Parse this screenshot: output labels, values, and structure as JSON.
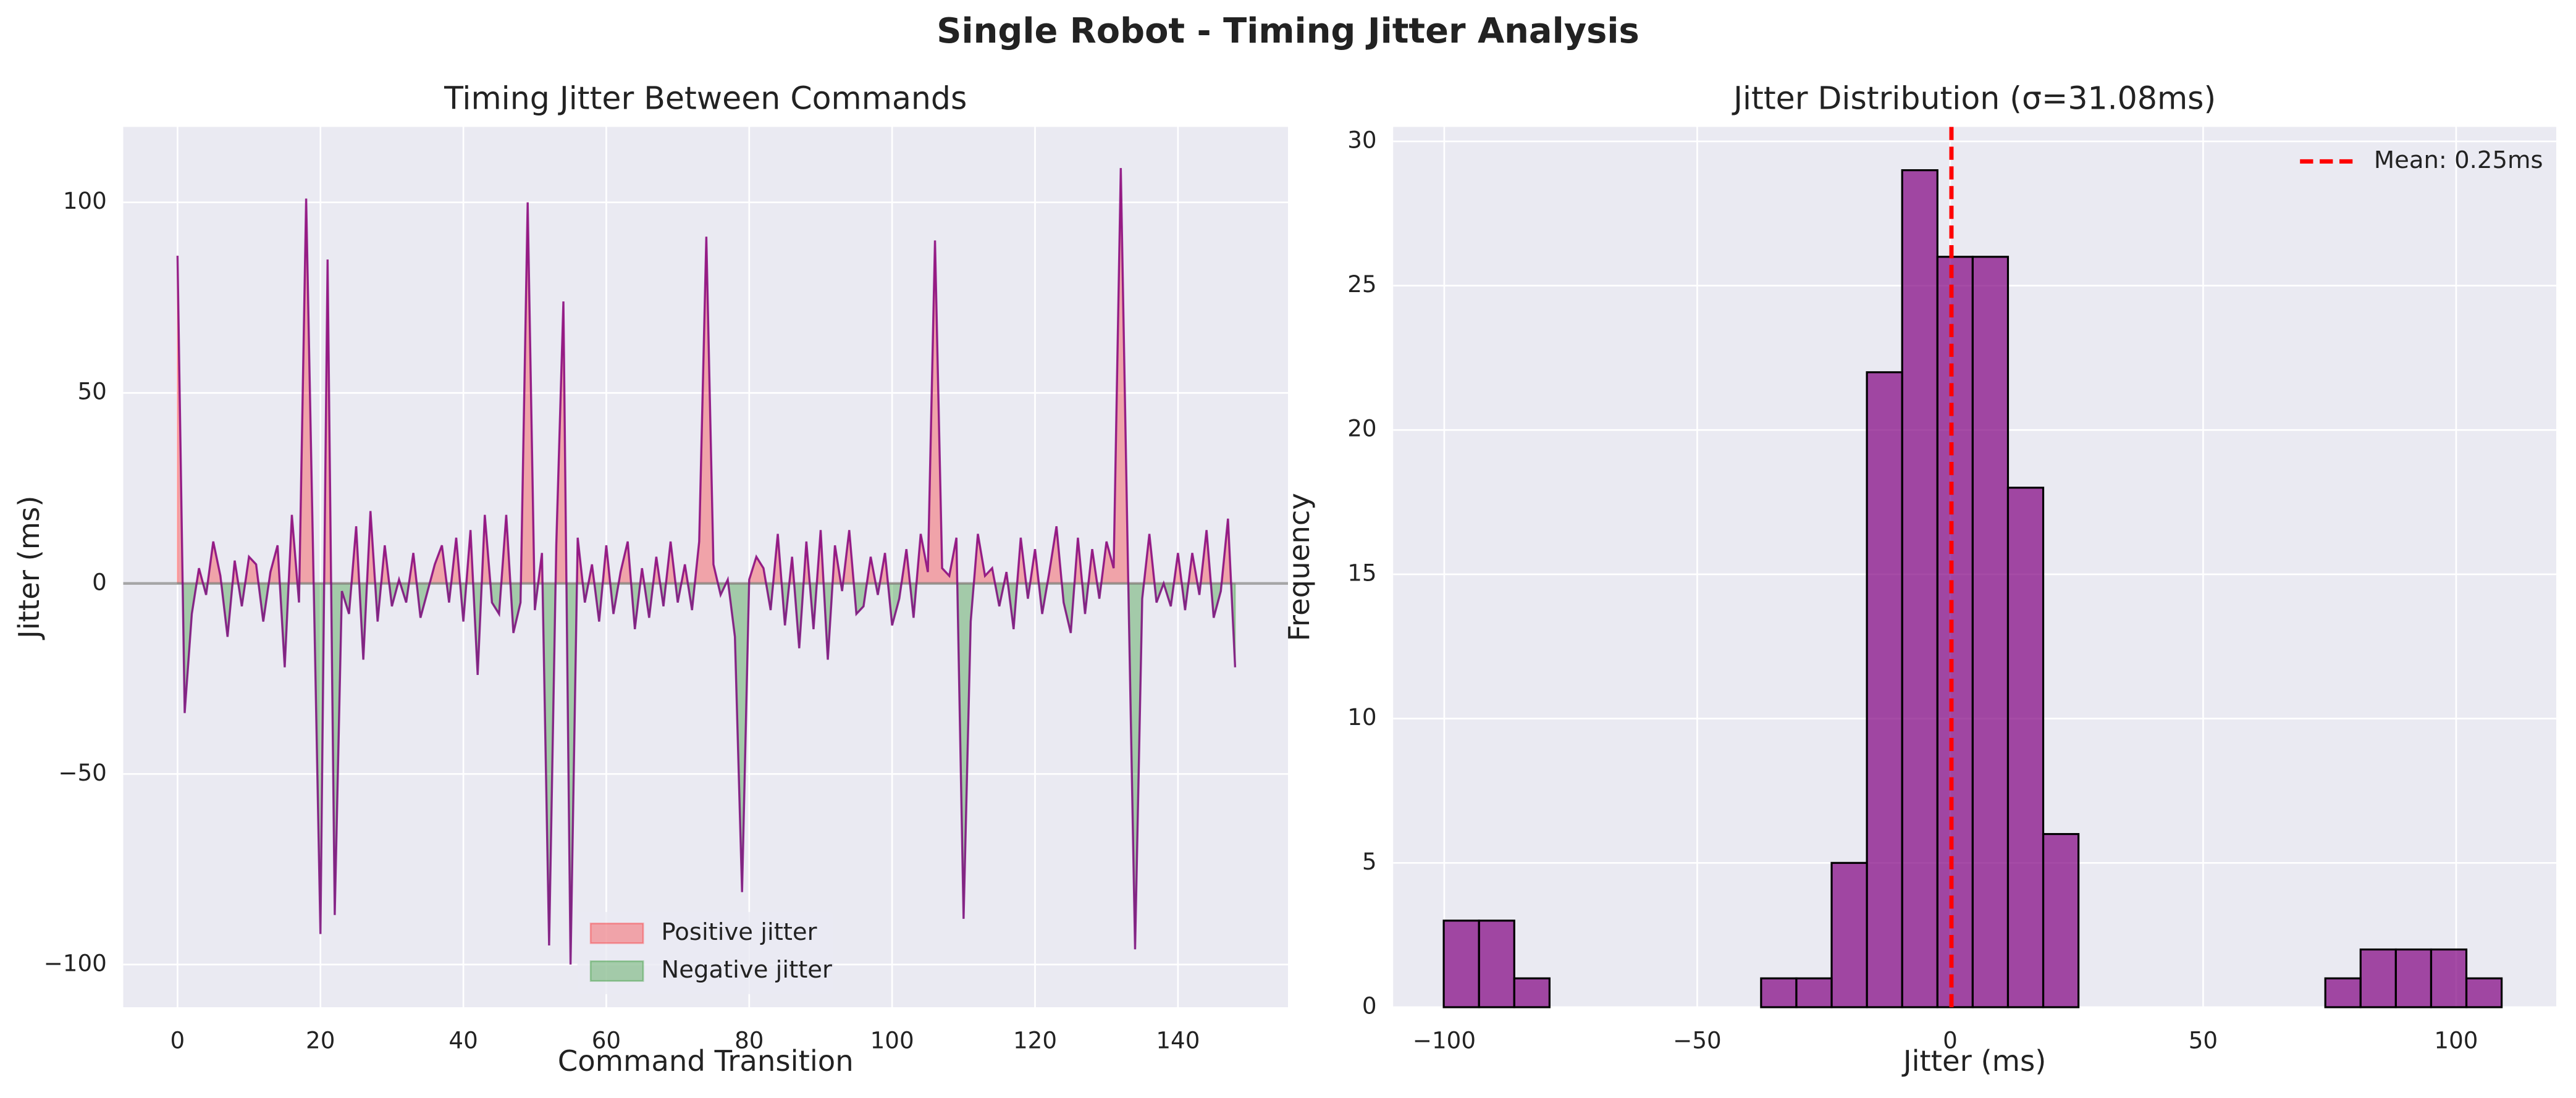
{
  "title": "Single Robot - Timing Jitter Analysis",
  "chart_data": [
    {
      "type": "line",
      "title": "Timing Jitter Between Commands",
      "xlabel": "Command Transition",
      "ylabel": "Jitter (ms)",
      "x": [
        0,
        1,
        2,
        3,
        4,
        5,
        6,
        7,
        8,
        9,
        10,
        11,
        12,
        13,
        14,
        15,
        16,
        17,
        18,
        19,
        20,
        21,
        22,
        23,
        24,
        25,
        26,
        27,
        28,
        29,
        30,
        31,
        32,
        33,
        34,
        35,
        36,
        37,
        38,
        39,
        40,
        41,
        42,
        43,
        44,
        45,
        46,
        47,
        48,
        49,
        50,
        51,
        52,
        53,
        54,
        55,
        56,
        57,
        58,
        59,
        60,
        61,
        62,
        63,
        64,
        65,
        66,
        67,
        68,
        69,
        70,
        71,
        72,
        73,
        74,
        75,
        76,
        77,
        78,
        79,
        80,
        81,
        82,
        83,
        84,
        85,
        86,
        87,
        88,
        89,
        90,
        91,
        92,
        93,
        94,
        95,
        96,
        97,
        98,
        99,
        100,
        101,
        102,
        103,
        104,
        105,
        106,
        107,
        108,
        109,
        110,
        111,
        112,
        113,
        114,
        115,
        116,
        117,
        118,
        119,
        120,
        121,
        122,
        123,
        124,
        125,
        126,
        127,
        128,
        129,
        130,
        131,
        132,
        133,
        134,
        135,
        136,
        137,
        138,
        139,
        140,
        141,
        142,
        143,
        144,
        145,
        146,
        147,
        148
      ],
      "values": [
        86,
        -34,
        -8,
        4,
        -3,
        11,
        2,
        -14,
        6,
        -6,
        7,
        5,
        -10,
        3,
        10,
        -22,
        18,
        -5,
        101,
        5,
        -92,
        85,
        -87,
        -2,
        -8,
        15,
        -20,
        19,
        -10,
        10,
        -6,
        1,
        -5,
        8,
        -9,
        -2,
        5,
        10,
        -5,
        12,
        -10,
        14,
        -24,
        18,
        -5,
        -8,
        18,
        -13,
        -5,
        100,
        -7,
        8,
        -95,
        10,
        74,
        -100,
        12,
        -5,
        5,
        -10,
        10,
        -8,
        3,
        11,
        -12,
        4,
        -9,
        7,
        -6,
        11,
        -5,
        5,
        -7,
        11,
        91,
        5,
        -3,
        1,
        -14,
        -81,
        1,
        7,
        4,
        -7,
        13,
        -11,
        7,
        -17,
        11,
        -12,
        14,
        -20,
        10,
        -2,
        14,
        -8,
        -6,
        7,
        -3,
        8,
        -11,
        -4,
        9,
        -9,
        13,
        3,
        90,
        4,
        2,
        12,
        -88,
        -10,
        13,
        2,
        4,
        -6,
        3,
        -12,
        12,
        -4,
        9,
        -8,
        3,
        15,
        -5,
        -13,
        12,
        -8,
        9,
        -4,
        11,
        4,
        109,
        5,
        -96,
        -4,
        13,
        -5,
        0,
        -6,
        8,
        -7,
        8,
        -3,
        14,
        -9,
        -2,
        17,
        -22
      ],
      "color": "purple",
      "alpha": 0.8,
      "hline": 0,
      "hline_color": "gray",
      "fills": [
        {
          "name": "Positive jitter",
          "color": "red",
          "alpha": 0.3,
          "where": "above"
        },
        {
          "name": "Negative jitter",
          "color": "green",
          "alpha": 0.3,
          "where": "below"
        }
      ],
      "legend": "lower center",
      "grid": true,
      "xlim": [
        -7.6,
        155.4
      ],
      "xticks": [
        0,
        20,
        40,
        60,
        80,
        100,
        120,
        140
      ],
      "ylim": [
        -111.2,
        119.8
      ],
      "yticks": [
        {
          "value": -100,
          "label": "−100"
        },
        {
          "value": -50,
          "label": "−50"
        },
        0,
        50,
        100
      ]
    },
    {
      "type": "histogram",
      "title": "Jitter Distribution (σ=31.08ms)",
      "xlabel": "Jitter (ms)",
      "ylabel": "Frequency",
      "bins": [
        -100.1,
        -93.13,
        -86.16,
        -79.19,
        -72.22,
        -65.25,
        -58.28,
        -51.31,
        -44.34,
        -37.37,
        -30.4,
        -23.43,
        -16.46,
        -9.49,
        -2.52,
        4.45,
        11.42,
        18.39,
        25.36,
        32.33,
        39.3,
        46.27,
        53.24,
        60.21,
        67.18,
        74.15,
        81.12,
        88.09,
        95.06,
        102.03,
        109.0
      ],
      "values": [
        3,
        3,
        1,
        0,
        0,
        0,
        0,
        0,
        0,
        1,
        1,
        5,
        22,
        29,
        26,
        26,
        18,
        6,
        0,
        0,
        0,
        0,
        0,
        0,
        0,
        1,
        2,
        2,
        2,
        1
      ],
      "color": "purple",
      "alpha": 0.7,
      "edgecolor": "black",
      "mean": 0.25,
      "mean_label": "Mean: 0.25ms",
      "mean_color": "red",
      "legend": "upper right",
      "grid": true,
      "xlim": [
        -110.1,
        119.8
      ],
      "xticks": [
        {
          "value": -100,
          "label": "−100"
        },
        {
          "value": -50,
          "label": "−50"
        },
        0,
        50,
        100
      ],
      "ylim": [
        0,
        30.5
      ],
      "yticks": [
        0,
        5,
        10,
        15,
        20,
        25,
        30
      ]
    }
  ]
}
